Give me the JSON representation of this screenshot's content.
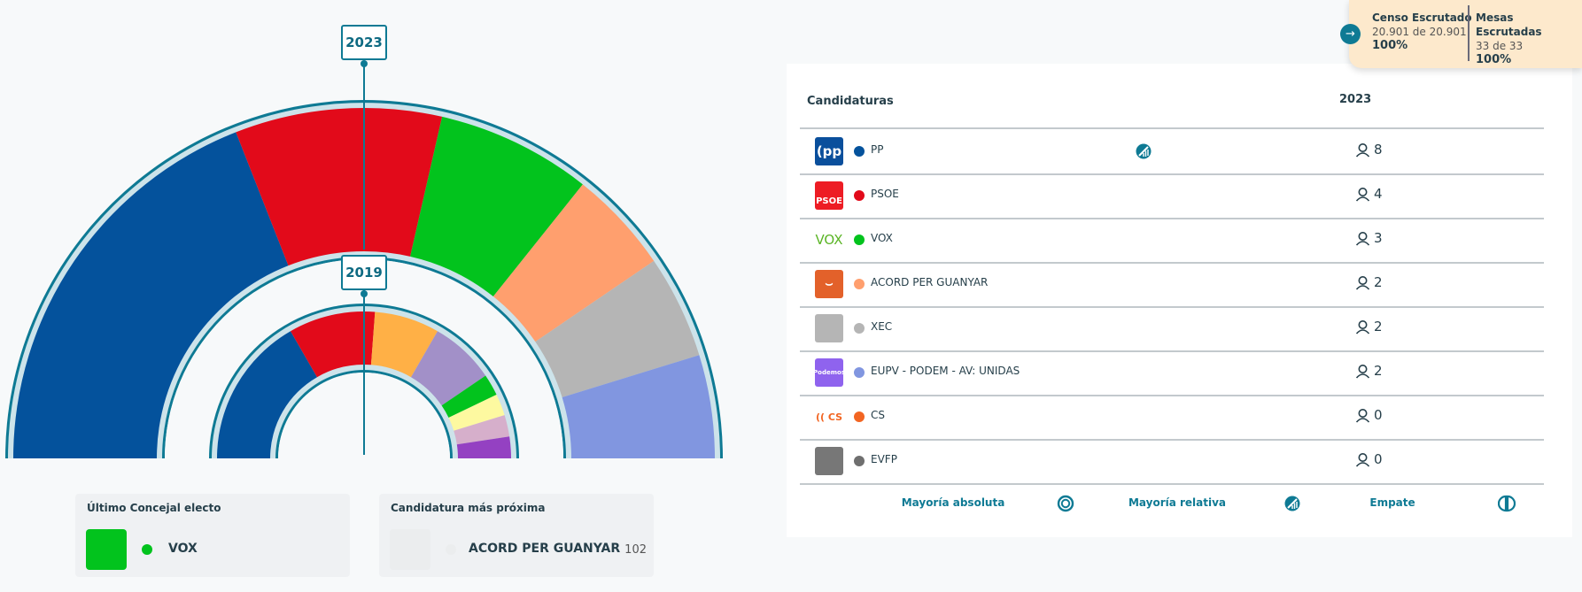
{
  "chart_data": [
    {
      "type": "hemicycle",
      "title": "2023",
      "total_seats": 21,
      "series": [
        {
          "name": "PP",
          "seats": 8,
          "color": "#04529c"
        },
        {
          "name": "PSOE",
          "seats": 4,
          "color": "#e20a1a"
        },
        {
          "name": "VOX",
          "seats": 3,
          "color": "#02c31d"
        },
        {
          "name": "ACORD PER GUANYAR",
          "seats": 2,
          "color": "#ff9f6e"
        },
        {
          "name": "XEC",
          "seats": 2,
          "color": "#b5b5b5"
        },
        {
          "name": "EUPV - PODEM - AV: UNIDAS",
          "seats": 2,
          "color": "#8196e0"
        }
      ]
    },
    {
      "type": "hemicycle",
      "title": "2019",
      "total_seats": 21,
      "series": [
        {
          "seats": 7,
          "color": "#04529c"
        },
        {
          "seats": 4,
          "color": "#e20a1a"
        },
        {
          "seats": 3,
          "color": "#ffb046"
        },
        {
          "seats": 3,
          "color": "#a290c8"
        },
        {
          "seats": 1,
          "color": "#02c31d"
        },
        {
          "seats": 1,
          "color": "#fdf9a0"
        },
        {
          "seats": 1,
          "color": "#d6afcb"
        },
        {
          "seats": 1,
          "color": "#9441c2"
        }
      ]
    }
  ],
  "years": {
    "current": "2023",
    "previous": "2019"
  },
  "last_elected": {
    "title": "Último Concejal electo",
    "party": "VOX",
    "color": "#02c31d"
  },
  "closest": {
    "title": "Candidatura más próxima",
    "party": "ACORD PER GUANYAR",
    "votes": "102"
  },
  "table": {
    "header_candidaturas": "Candidaturas",
    "header_year": "2023",
    "rows": [
      {
        "name": "PP",
        "seats": "8",
        "color": "#04529c",
        "logo": "PP",
        "logo_bg": "#0a4f9c",
        "relative_majority": true
      },
      {
        "name": "PSOE",
        "seats": "4",
        "color": "#e20a1a",
        "logo": "PSOE",
        "logo_bg": "#ed1c24"
      },
      {
        "name": "VOX",
        "seats": "3",
        "color": "#02c31d",
        "logo": "VOX",
        "logo_bg": "#ffffff"
      },
      {
        "name": "ACORD PER GUANYAR",
        "seats": "2",
        "color": "#ff9f6e",
        "logo": "",
        "logo_bg": "#e3612a"
      },
      {
        "name": "XEC",
        "seats": "2",
        "color": "#b5b5b5",
        "logo": "",
        "logo_bg": "#b5b5b5"
      },
      {
        "name": "EUPV - PODEM - AV: UNIDAS",
        "seats": "2",
        "color": "#8196e0",
        "logo": "Podemos",
        "logo_bg": "#8f63ee"
      },
      {
        "name": "CS",
        "seats": "0",
        "color": "#f26522",
        "logo": "CS",
        "logo_bg": "#ffffff"
      },
      {
        "name": "EVFP",
        "seats": "0",
        "color": "#6f6f6f",
        "logo": "",
        "logo_bg": "#777777"
      }
    ]
  },
  "legend": {
    "absolute": "Mayoría absoluta",
    "relative": "Mayoría relativa",
    "tie": "Empate"
  },
  "scrutiny": {
    "censo_title": "Censo Escrutado",
    "censo_value": "20.901 de 20.901",
    "censo_pct": "100%",
    "mesas_title": "Mesas Escrutadas",
    "mesas_value": "33 de 33",
    "mesas_pct": "100%"
  },
  "colors": {
    "accent": "#0e7a94"
  }
}
